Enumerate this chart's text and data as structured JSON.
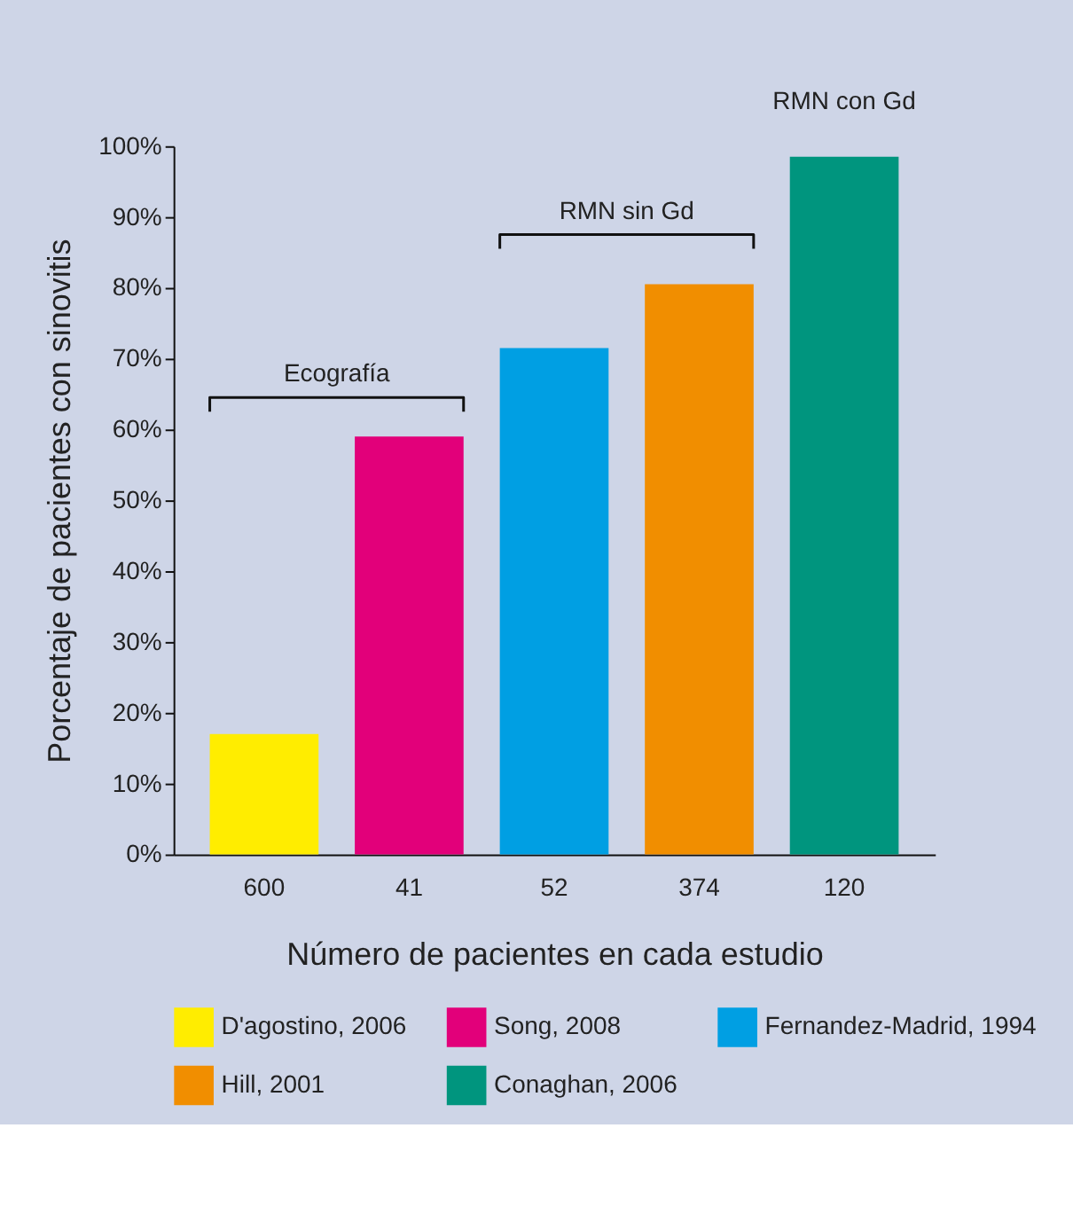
{
  "chart_data": {
    "type": "bar",
    "xlabel": "Número de pacientes en cada estudio",
    "ylabel": "Porcentaje de pacientes con sinovitis",
    "categories": [
      "600",
      "41",
      "52",
      "374",
      "120"
    ],
    "series": [
      {
        "name": "D'agostino, 2006",
        "color": "#ffed00",
        "values": [
          17,
          null,
          null,
          null,
          null
        ]
      },
      {
        "name": "Song, 2008",
        "color": "#e2007a",
        "values": [
          null,
          59,
          null,
          null,
          null
        ]
      },
      {
        "name": "Fernandez-Madrid, 1994",
        "color": "#009fe3",
        "values": [
          null,
          null,
          71.5,
          null,
          null
        ]
      },
      {
        "name": "Hill, 2001",
        "color": "#f18e00",
        "values": [
          null,
          null,
          null,
          80.5,
          null
        ]
      },
      {
        "name": "Conaghan, 2006",
        "color": "#00957e",
        "values": [
          null,
          null,
          null,
          null,
          98.5
        ]
      }
    ],
    "ylim": [
      0,
      100
    ],
    "yticks": [
      {
        "value": 0,
        "label": "0%"
      },
      {
        "value": 10,
        "label": "10%"
      },
      {
        "value": 20,
        "label": "20%"
      },
      {
        "value": 30,
        "label": "30%"
      },
      {
        "value": 40,
        "label": "40%"
      },
      {
        "value": 50,
        "label": "50%"
      },
      {
        "value": 60,
        "label": "60%"
      },
      {
        "value": 70,
        "label": "70%"
      },
      {
        "value": 80,
        "label": "80%"
      },
      {
        "value": 90,
        "label": "90%"
      },
      {
        "value": 100,
        "label": "100%"
      }
    ],
    "annotations": [
      "Ecografía",
      "RMN sin Gd",
      "RMN con Gd"
    ],
    "grid": false,
    "legend": "bottom"
  }
}
